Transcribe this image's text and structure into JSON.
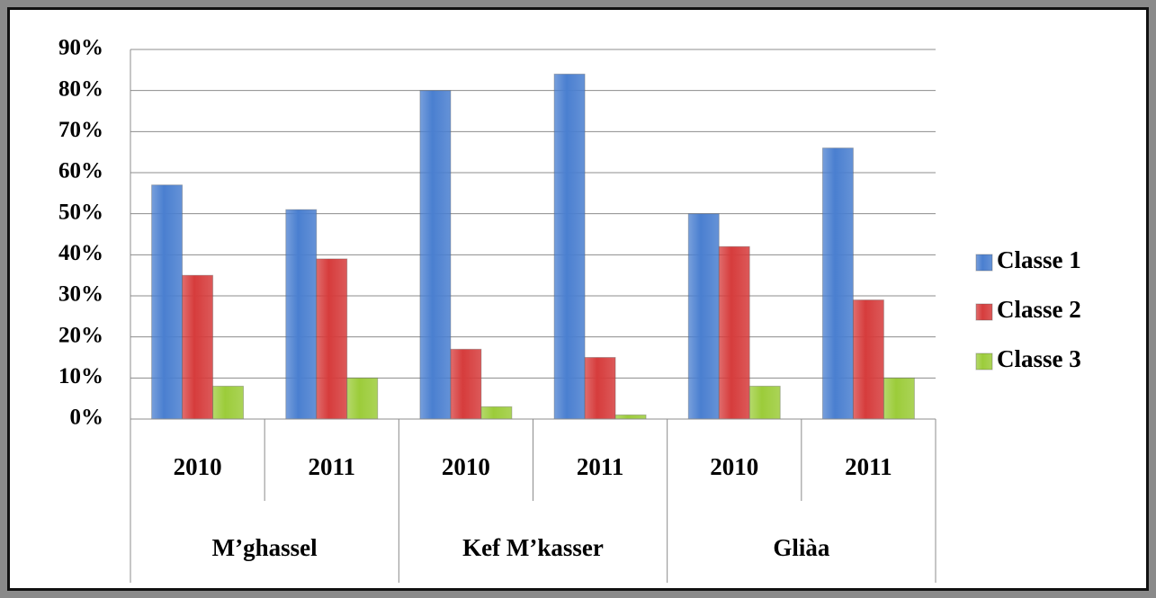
{
  "chart_data": {
    "type": "bar",
    "categories": [
      "2010",
      "2011",
      "2010",
      "2011",
      "2010",
      "2011"
    ],
    "groups": [
      "M’ghassel",
      "Kef M’kasser",
      "Gliàa"
    ],
    "series": [
      {
        "name": "Classe 1",
        "color": "#4a7fd0",
        "values": [
          57,
          51,
          80,
          84,
          50,
          66
        ]
      },
      {
        "name": "Classe 2",
        "color": "#d63c3c",
        "values": [
          35,
          39,
          17,
          15,
          42,
          29
        ]
      },
      {
        "name": "Classe 3",
        "color": "#9ccc3a",
        "values": [
          8,
          10,
          3,
          1,
          8,
          10
        ]
      }
    ],
    "ylim": [
      0,
      90
    ],
    "yticks": [
      {
        "value": 0,
        "label": "0%"
      },
      {
        "value": 10,
        "label": "10%"
      },
      {
        "value": 20,
        "label": "20%"
      },
      {
        "value": 30,
        "label": "30%"
      },
      {
        "value": 40,
        "label": "40%"
      },
      {
        "value": 50,
        "label": "50%"
      },
      {
        "value": 60,
        "label": "60%"
      },
      {
        "value": 70,
        "label": "70%"
      },
      {
        "value": 80,
        "label": "80%"
      },
      {
        "value": 90,
        "label": "90%"
      }
    ],
    "grid": true,
    "legend": "right"
  }
}
